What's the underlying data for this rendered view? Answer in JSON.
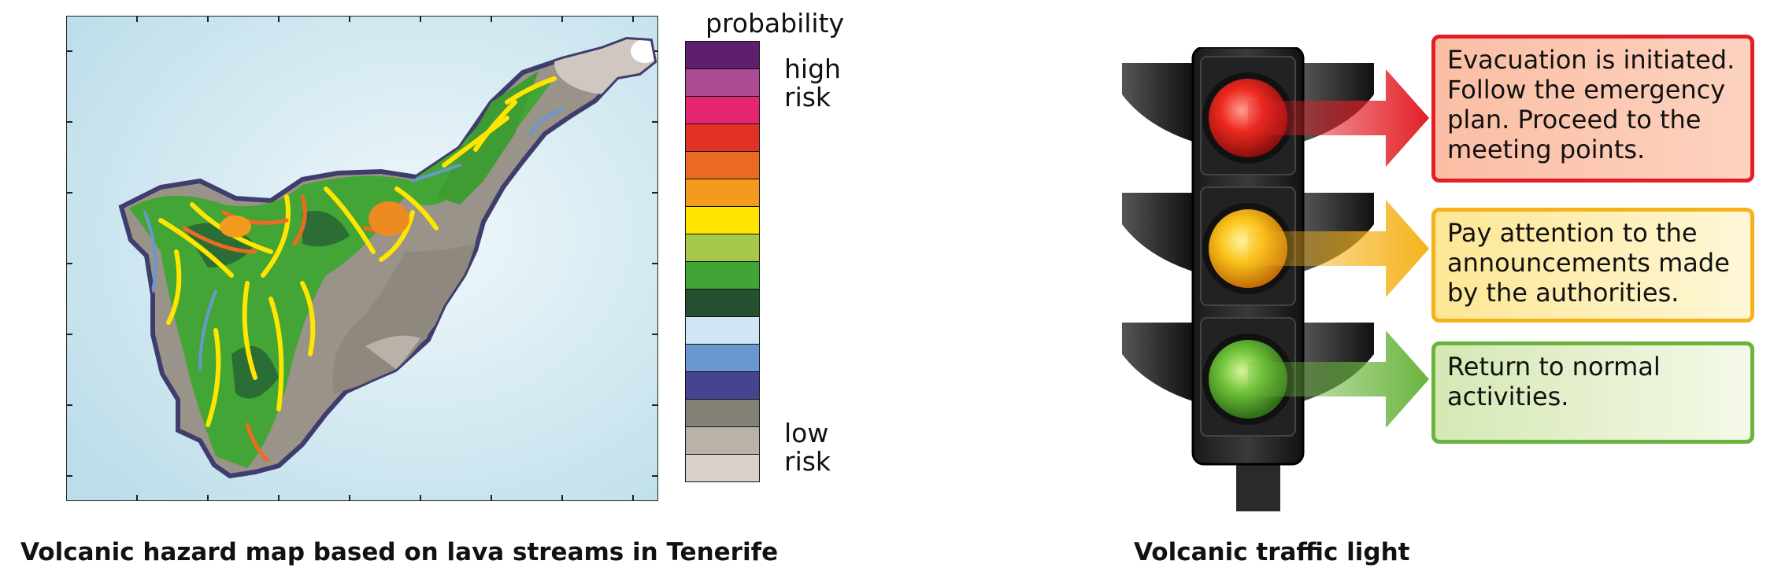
{
  "hazard_map": {
    "caption": "Volcanic hazard map based on lava streams in Tenerife",
    "legend": {
      "title": "probability",
      "high_label": "high risk",
      "low_label": "low risk",
      "swatches": [
        "#5e1f6e",
        "#ad4a94",
        "#e3266d",
        "#e23226",
        "#ea6a22",
        "#f39a1f",
        "#ffe500",
        "#a7c94a",
        "#41a535",
        "#24512f",
        "#cfe6f5",
        "#6898cf",
        "#47438f",
        "#848277",
        "#b9b2a9",
        "#d9d1cb"
      ]
    },
    "colors": {
      "sea": "#cfe6ef",
      "land": "#9a9389",
      "coast": "#3f3d6d"
    }
  },
  "traffic_light": {
    "caption": "Volcanic traffic light",
    "signals": [
      {
        "level": "red",
        "color": "#e21f26",
        "message": "Evacuation is initiated. Follow the emergency plan. Proceed to the meeting points."
      },
      {
        "level": "yellow",
        "color": "#f5b21b",
        "message": "Pay attention to the announcements made by the authorities."
      },
      {
        "level": "green",
        "color": "#6ab43d",
        "message": "Return to normal activities."
      }
    ]
  }
}
